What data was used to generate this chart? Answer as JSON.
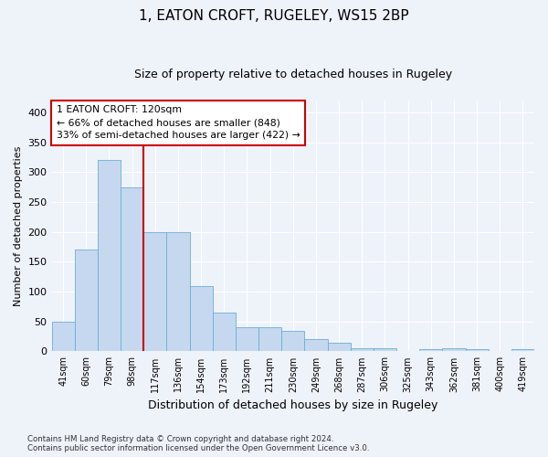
{
  "title": "1, EATON CROFT, RUGELEY, WS15 2BP",
  "subtitle": "Size of property relative to detached houses in Rugeley",
  "xlabel": "Distribution of detached houses by size in Rugeley",
  "ylabel": "Number of detached properties",
  "categories": [
    "41sqm",
    "60sqm",
    "79sqm",
    "98sqm",
    "117sqm",
    "136sqm",
    "154sqm",
    "173sqm",
    "192sqm",
    "211sqm",
    "230sqm",
    "249sqm",
    "268sqm",
    "287sqm",
    "306sqm",
    "325sqm",
    "343sqm",
    "362sqm",
    "381sqm",
    "400sqm",
    "419sqm"
  ],
  "values": [
    50,
    170,
    320,
    275,
    200,
    200,
    110,
    65,
    40,
    40,
    35,
    20,
    15,
    5,
    5,
    0,
    3,
    5,
    3,
    0,
    3
  ],
  "bar_color": "#c5d8f0",
  "bar_edge_color": "#6baed6",
  "annotation_line1": "1 EATON CROFT: 120sqm",
  "annotation_line2": "← 66% of detached houses are smaller (848)",
  "annotation_line3": "33% of semi-detached houses are larger (422) →",
  "vline_color": "#cc0000",
  "annotation_box_color": "#cc0000",
  "vline_pos": 3.5,
  "ylim": [
    0,
    420
  ],
  "yticks": [
    0,
    50,
    100,
    150,
    200,
    250,
    300,
    350,
    400
  ],
  "background_color": "#eef2f9",
  "grid_color": "#ffffff",
  "footer1": "Contains HM Land Registry data © Crown copyright and database right 2024.",
  "footer2": "Contains public sector information licensed under the Open Government Licence v3.0."
}
